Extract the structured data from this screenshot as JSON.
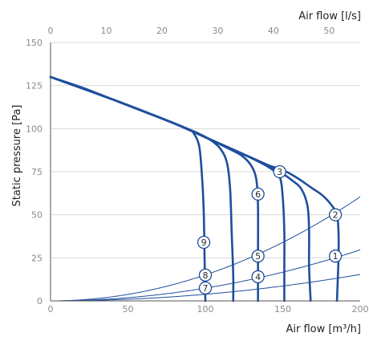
{
  "chart_data": {
    "type": "line",
    "xlabel_bottom": "Air flow [m³/h]",
    "xlabel_top": "Air flow [l/s]",
    "ylabel": "Static pressure [Pa]",
    "xlim": [
      0,
      200
    ],
    "ylim": [
      0,
      150
    ],
    "top_xlim": [
      0,
      55.56
    ],
    "x_ticks": [
      0,
      50,
      100,
      150,
      200
    ],
    "y_ticks": [
      0,
      25,
      50,
      75,
      100,
      125,
      150
    ],
    "top_x_ticks": [
      0,
      10,
      20,
      30,
      40,
      50
    ],
    "grid": "horizontal",
    "colors": {
      "fan_curve": "#1f4e9c",
      "system_curve": "#1f4e9c",
      "grid": "#d9d9d9",
      "axis": "#555555",
      "marker_stroke": "#1f4e9c",
      "marker_fill": "#ffffff"
    },
    "fan_curves": [
      {
        "points": [
          [
            0,
            130
          ],
          [
            20,
            124
          ],
          [
            40,
            117
          ],
          [
            60,
            110
          ],
          [
            80,
            103
          ],
          [
            90,
            99
          ],
          [
            92,
            98
          ],
          [
            96,
            90
          ],
          [
            98,
            70
          ],
          [
            99,
            50
          ],
          [
            99.5,
            25
          ],
          [
            100,
            0
          ]
        ]
      },
      {
        "points": [
          [
            0,
            130
          ],
          [
            40,
            117
          ],
          [
            80,
            103
          ],
          [
            96,
            97
          ],
          [
            104,
            93
          ],
          [
            110,
            88
          ],
          [
            114,
            80
          ],
          [
            116,
            65
          ],
          [
            117,
            40
          ],
          [
            118,
            15
          ],
          [
            118,
            0
          ]
        ]
      },
      {
        "points": [
          [
            0,
            130
          ],
          [
            40,
            117
          ],
          [
            80,
            103
          ],
          [
            100,
            95
          ],
          [
            116,
            88
          ],
          [
            124,
            84
          ],
          [
            130,
            78
          ],
          [
            133,
            70
          ],
          [
            134,
            55
          ],
          [
            134,
            25
          ],
          [
            134,
            0
          ]
        ]
      },
      {
        "points": [
          [
            0,
            130
          ],
          [
            40,
            117
          ],
          [
            80,
            103
          ],
          [
            100,
            95
          ],
          [
            120,
            87
          ],
          [
            134,
            81
          ],
          [
            142,
            77
          ],
          [
            148,
            72
          ],
          [
            150,
            60
          ],
          [
            151,
            40
          ],
          [
            151,
            20
          ],
          [
            151,
            0
          ]
        ]
      },
      {
        "points": [
          [
            0,
            130
          ],
          [
            40,
            117
          ],
          [
            80,
            103
          ],
          [
            100,
            95
          ],
          [
            120,
            87
          ],
          [
            140,
            79
          ],
          [
            148,
            75
          ],
          [
            156,
            70
          ],
          [
            162,
            65
          ],
          [
            166,
            55
          ],
          [
            167,
            40
          ],
          [
            167,
            20
          ],
          [
            168,
            0
          ]
        ]
      },
      {
        "points": [
          [
            0,
            130
          ],
          [
            40,
            117
          ],
          [
            80,
            103
          ],
          [
            100,
            95
          ],
          [
            120,
            87
          ],
          [
            140,
            79
          ],
          [
            150,
            76
          ],
          [
            160,
            71
          ],
          [
            168,
            66
          ],
          [
            176,
            61
          ],
          [
            182,
            55
          ],
          [
            185,
            50
          ],
          [
            186,
            40
          ],
          [
            186,
            25
          ],
          [
            185,
            0
          ]
        ]
      }
    ],
    "system_curves": [
      {
        "k": 0.00151
      },
      {
        "k": 0.000741
      },
      {
        "k": 0.000384
      }
    ],
    "markers": [
      {
        "label": "1",
        "x": 184,
        "y": 26
      },
      {
        "label": "2",
        "x": 184,
        "y": 50
      },
      {
        "label": "3",
        "x": 148,
        "y": 75
      },
      {
        "label": "4",
        "x": 134,
        "y": 14
      },
      {
        "label": "5",
        "x": 134,
        "y": 26
      },
      {
        "label": "6",
        "x": 134,
        "y": 62
      },
      {
        "label": "7",
        "x": 100,
        "y": 7.5
      },
      {
        "label": "8",
        "x": 100,
        "y": 15
      },
      {
        "label": "9",
        "x": 99,
        "y": 34
      }
    ]
  }
}
